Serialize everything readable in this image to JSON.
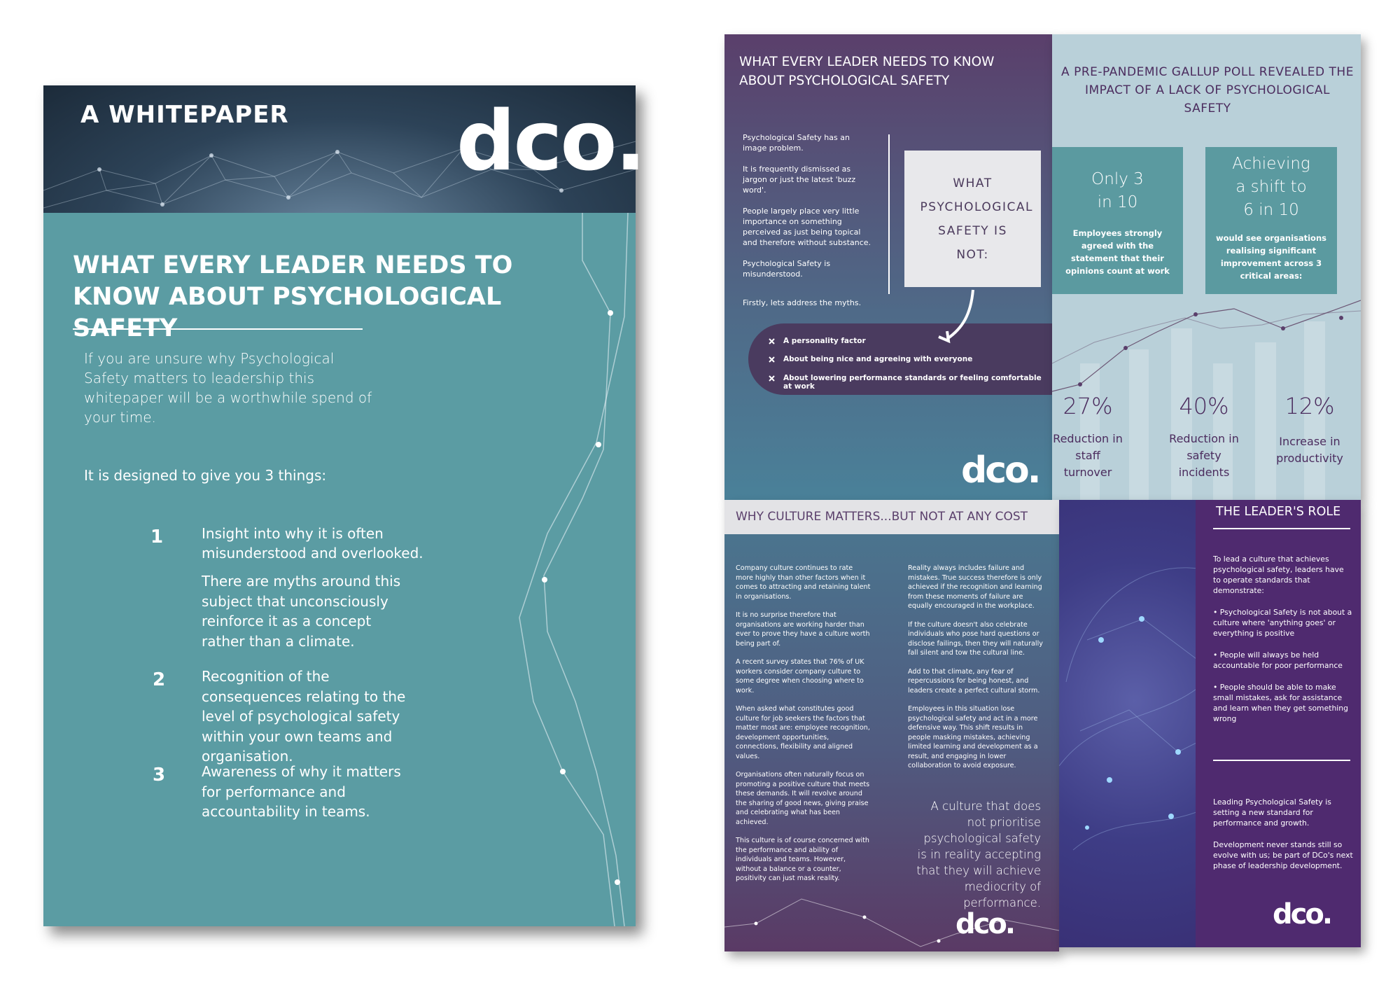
{
  "cover": {
    "kicker": "A WHITEPAPER",
    "logo": "dco.",
    "title": "WHAT EVERY LEADER NEEDS TO KNOW ABOUT PSYCHOLOGICAL SAFETY",
    "intro": "If you are unsure why Psychological Safety matters to leadership this whitepaper will be a worthwhile spend of your time.",
    "lead": "It is designed to give you 3 things:",
    "items": [
      {
        "number": "1",
        "text": "Insight into why it is often misunderstood and overlooked.",
        "detail": "There are myths around this subject that unconsciously reinforce it as a concept rather than a climate."
      },
      {
        "number": "2",
        "text": "Recognition of the consequences relating to the level of psychological safety within your own teams and organisation."
      },
      {
        "number": "3",
        "text": "Awareness of why it matters for performance and accountability in teams."
      }
    ]
  },
  "myths": {
    "title": "WHAT EVERY LEADER NEEDS TO KNOW ABOUT PSYCHOLOGICAL SAFETY",
    "paragraphs": [
      "Psychological Safety has an image problem.",
      "It is frequently dismissed as jargon or just the latest 'buzz word'.",
      "People largely place very little importance on something perceived as just being topical and therefore without substance.",
      "Psychological Safety is misunderstood."
    ],
    "prompt": "Firstly, lets address the myths.",
    "box": "WHAT PSYCHOLOGICAL SAFETY IS NOT:",
    "list": [
      "A personality factor",
      "About being nice and agreeing with everyone",
      "About lowering performance standards or feeling comfortable at work"
    ],
    "logo": "dco."
  },
  "gallup": {
    "title": "A PRE-PANDEMIC GALLUP POLL REVEALED THE IMPACT OF A LACK OF PSYCHOLOGICAL SAFETY",
    "cards": [
      {
        "headline": "Only 3 in 10",
        "text": "Employees strongly agreed with the statement that their opinions count at work"
      },
      {
        "headline": "Achieving a shift to 6 in 10",
        "text": "would see organisations realising significant improvement across 3 critical areas:"
      }
    ],
    "stats": [
      {
        "value": "27%",
        "label": "Reduction in staff turnover"
      },
      {
        "value": "40%",
        "label": "Reduction in safety incidents"
      },
      {
        "value": "12%",
        "label": "Increase in productivity"
      }
    ]
  },
  "culture": {
    "title": "WHY CULTURE MATTERS...BUT NOT AT ANY COST",
    "left": [
      "Company culture continues to rate more highly than other factors when it comes to attracting and retaining talent in organisations.",
      "It is no surprise therefore that organisations are working harder than ever to prove they have a culture worth being part of.",
      "A recent survey states that 76% of UK workers consider company culture to some degree when choosing where to work.",
      "When asked what constitutes good culture for job seekers the factors that matter most are: employee recognition, development opportunities, connections, flexibility and aligned values.",
      "Organisations often naturally focus on promoting a positive culture that meets these demands. It will revolve around the sharing of good news, giving praise and celebrating what has been achieved.",
      "This culture is of course concerned with the performance and ability of individuals and teams. However, without a balance or a counter, positivity can just mask reality."
    ],
    "right": [
      "Reality always includes failure and mistakes. True success therefore is only achieved if the recognition and learning from these moments of failure are equally encouraged in the workplace.",
      "If the culture doesn't also celebrate individuals who pose hard questions or disclose failings, then they will naturally fall silent and tow the cultural line.",
      "Add to that climate, any fear of repercussions for being honest, and leaders create a perfect cultural storm.",
      "Employees in this situation lose psychological safety and act in a more defensive way. This shift results in people masking mistakes, achieving limited learning and development as a result, and engaging in lower collaboration to avoid exposure."
    ],
    "quote": "A culture that does not prioritise psychological safety is in reality accepting that they will achieve mediocrity of performance.",
    "logo": "dco."
  },
  "leader": {
    "title": "THE LEADER'S ROLE",
    "paragraphs": [
      "To lead a culture that achieves psychological safety, leaders have to operate standards that demonstrate:",
      "• Psychological Safety is not about a culture where 'anything goes' or everything is positive",
      "• People will always be held accountable for poor performance",
      "• People should be able to make small mistakes, ask for assistance and learn when they get something wrong"
    ],
    "closing": [
      "Leading Psychological Safety is setting a new standard for performance and growth.",
      "Development never stands still so evolve with us; be part of DCo's next phase of leadership development."
    ],
    "logo": "dco."
  }
}
